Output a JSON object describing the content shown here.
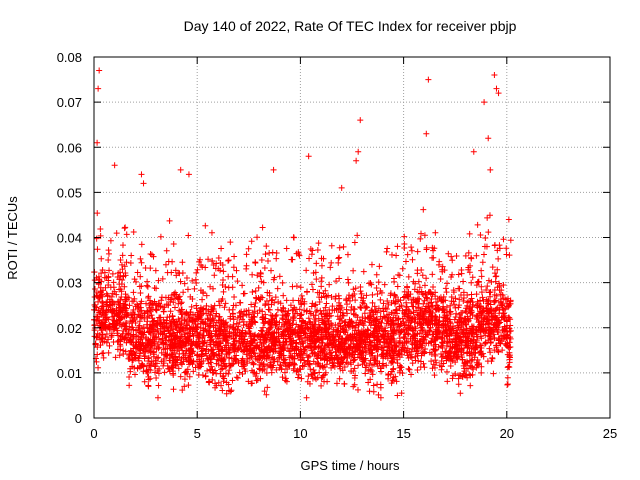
{
  "chart_data": {
    "type": "scatter",
    "title": "Day 140 of 2022, Rate Of TEC Index for receiver pbjp",
    "xlabel": "GPS time / hours",
    "ylabel": "ROTI / TECUs",
    "xlim": [
      0,
      25
    ],
    "ylim": [
      0,
      0.08
    ],
    "x_ticks": [
      0,
      5,
      10,
      15,
      20,
      25
    ],
    "x_tick_labels": [
      "0",
      "5",
      "10",
      "15",
      "20",
      "25"
    ],
    "y_ticks": [
      0,
      0.01,
      0.02,
      0.03,
      0.04,
      0.05,
      0.06,
      0.07,
      0.08
    ],
    "y_tick_labels": [
      "0",
      "0.01",
      "0.02",
      "0.03",
      "0.04",
      "0.05",
      "0.06",
      "0.07",
      "0.08"
    ],
    "grid": true,
    "marker": "plus",
    "color": "#ff0000",
    "x_range": [
      0,
      20.2
    ],
    "typical_band": [
      0.01,
      0.03
    ],
    "notable_points": [
      {
        "x": 0.25,
        "y": 0.077
      },
      {
        "x": 0.2,
        "y": 0.073
      },
      {
        "x": 0.15,
        "y": 0.061
      },
      {
        "x": 1.0,
        "y": 0.056
      },
      {
        "x": 2.3,
        "y": 0.054
      },
      {
        "x": 2.4,
        "y": 0.052
      },
      {
        "x": 4.2,
        "y": 0.055
      },
      {
        "x": 4.6,
        "y": 0.054
      },
      {
        "x": 8.7,
        "y": 0.055
      },
      {
        "x": 10.4,
        "y": 0.058
      },
      {
        "x": 12.0,
        "y": 0.051
      },
      {
        "x": 12.9,
        "y": 0.066
      },
      {
        "x": 12.8,
        "y": 0.059
      },
      {
        "x": 12.7,
        "y": 0.057
      },
      {
        "x": 16.2,
        "y": 0.075
      },
      {
        "x": 16.1,
        "y": 0.063
      },
      {
        "x": 18.4,
        "y": 0.059
      },
      {
        "x": 18.9,
        "y": 0.07
      },
      {
        "x": 19.1,
        "y": 0.062
      },
      {
        "x": 19.2,
        "y": 0.055
      },
      {
        "x": 19.4,
        "y": 0.076
      },
      {
        "x": 19.5,
        "y": 0.073
      },
      {
        "x": 19.6,
        "y": 0.072
      },
      {
        "x": 20.1,
        "y": 0.044
      },
      {
        "x": 13.9,
        "y": 0.0045
      },
      {
        "x": 10.3,
        "y": 0.0045
      },
      {
        "x": 14.7,
        "y": 0.005
      },
      {
        "x": 3.1,
        "y": 0.0045
      }
    ]
  }
}
